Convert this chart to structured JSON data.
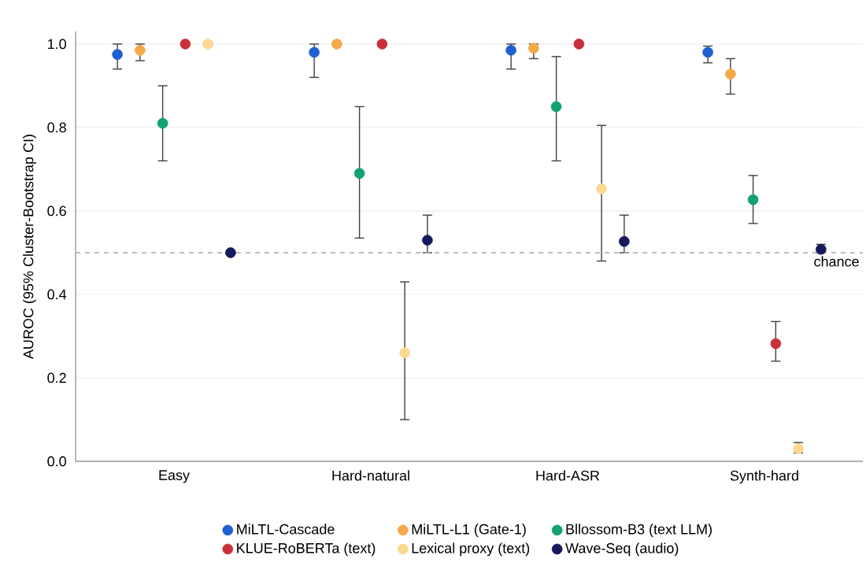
{
  "chart_data": {
    "type": "scatter",
    "ylabel": "AUROC (95% Cluster-Bootstrap CI)",
    "categories": [
      "Easy",
      "Hard-natural",
      "Hard-ASR",
      "Synth-hard"
    ],
    "series": [
      {
        "name": "MiLTL-Cascade",
        "color": "#1f5fcf",
        "values": [
          0.975,
          0.98,
          0.985,
          0.98
        ],
        "errors": [
          [
            0.94,
            1.0
          ],
          [
            0.92,
            1.0
          ],
          [
            0.94,
            1.0
          ],
          [
            0.955,
            0.995
          ]
        ]
      },
      {
        "name": "MiLTL-L1 (Gate-1)",
        "color": "#f5a94a",
        "values": [
          0.985,
          1.0,
          0.99,
          0.928
        ],
        "errors": [
          [
            0.96,
            1.0
          ],
          null,
          [
            0.965,
            1.0
          ],
          [
            0.88,
            0.965
          ]
        ]
      },
      {
        "name": "Bllossom-B3 (text LLM)",
        "color": "#12a170",
        "values": [
          0.81,
          0.69,
          0.85,
          0.627
        ],
        "errors": [
          [
            0.72,
            0.9
          ],
          [
            0.535,
            0.85
          ],
          [
            0.72,
            0.97
          ],
          [
            0.57,
            0.685
          ]
        ]
      },
      {
        "name": "KLUE-RoBERTa (text)",
        "color": "#c8313a",
        "values": [
          1.0,
          1.0,
          1.0,
          0.282
        ],
        "errors": [
          null,
          null,
          null,
          [
            0.24,
            0.335
          ]
        ]
      },
      {
        "name": "Lexical proxy (text)",
        "color": "#fcd891",
        "values": [
          1.0,
          0.26,
          0.653,
          0.03
        ],
        "errors": [
          null,
          [
            0.1,
            0.43
          ],
          [
            0.48,
            0.805
          ],
          [
            0.02,
            0.045
          ]
        ]
      },
      {
        "name": "Wave-Seq (audio)",
        "color": "#161a5c",
        "values": [
          0.5,
          0.53,
          0.527,
          0.508
        ],
        "errors": [
          null,
          [
            0.5,
            0.59
          ],
          [
            0.5,
            0.59
          ],
          [
            0.5,
            0.52
          ]
        ]
      }
    ],
    "ylim": [
      0,
      1.03
    ],
    "yticks": [
      {
        "value": 0,
        "label": "0.0"
      },
      0.2,
      0.4,
      0.6,
      0.8,
      {
        "value": 1,
        "label": "1.0"
      }
    ],
    "ref_lines": [
      {
        "axis": "y",
        "value": 0.5,
        "label": "chance",
        "color": "#aaaaaa",
        "line_style": "dashed"
      }
    ],
    "grid": "y",
    "legend": "bottom",
    "marker": "circle"
  }
}
